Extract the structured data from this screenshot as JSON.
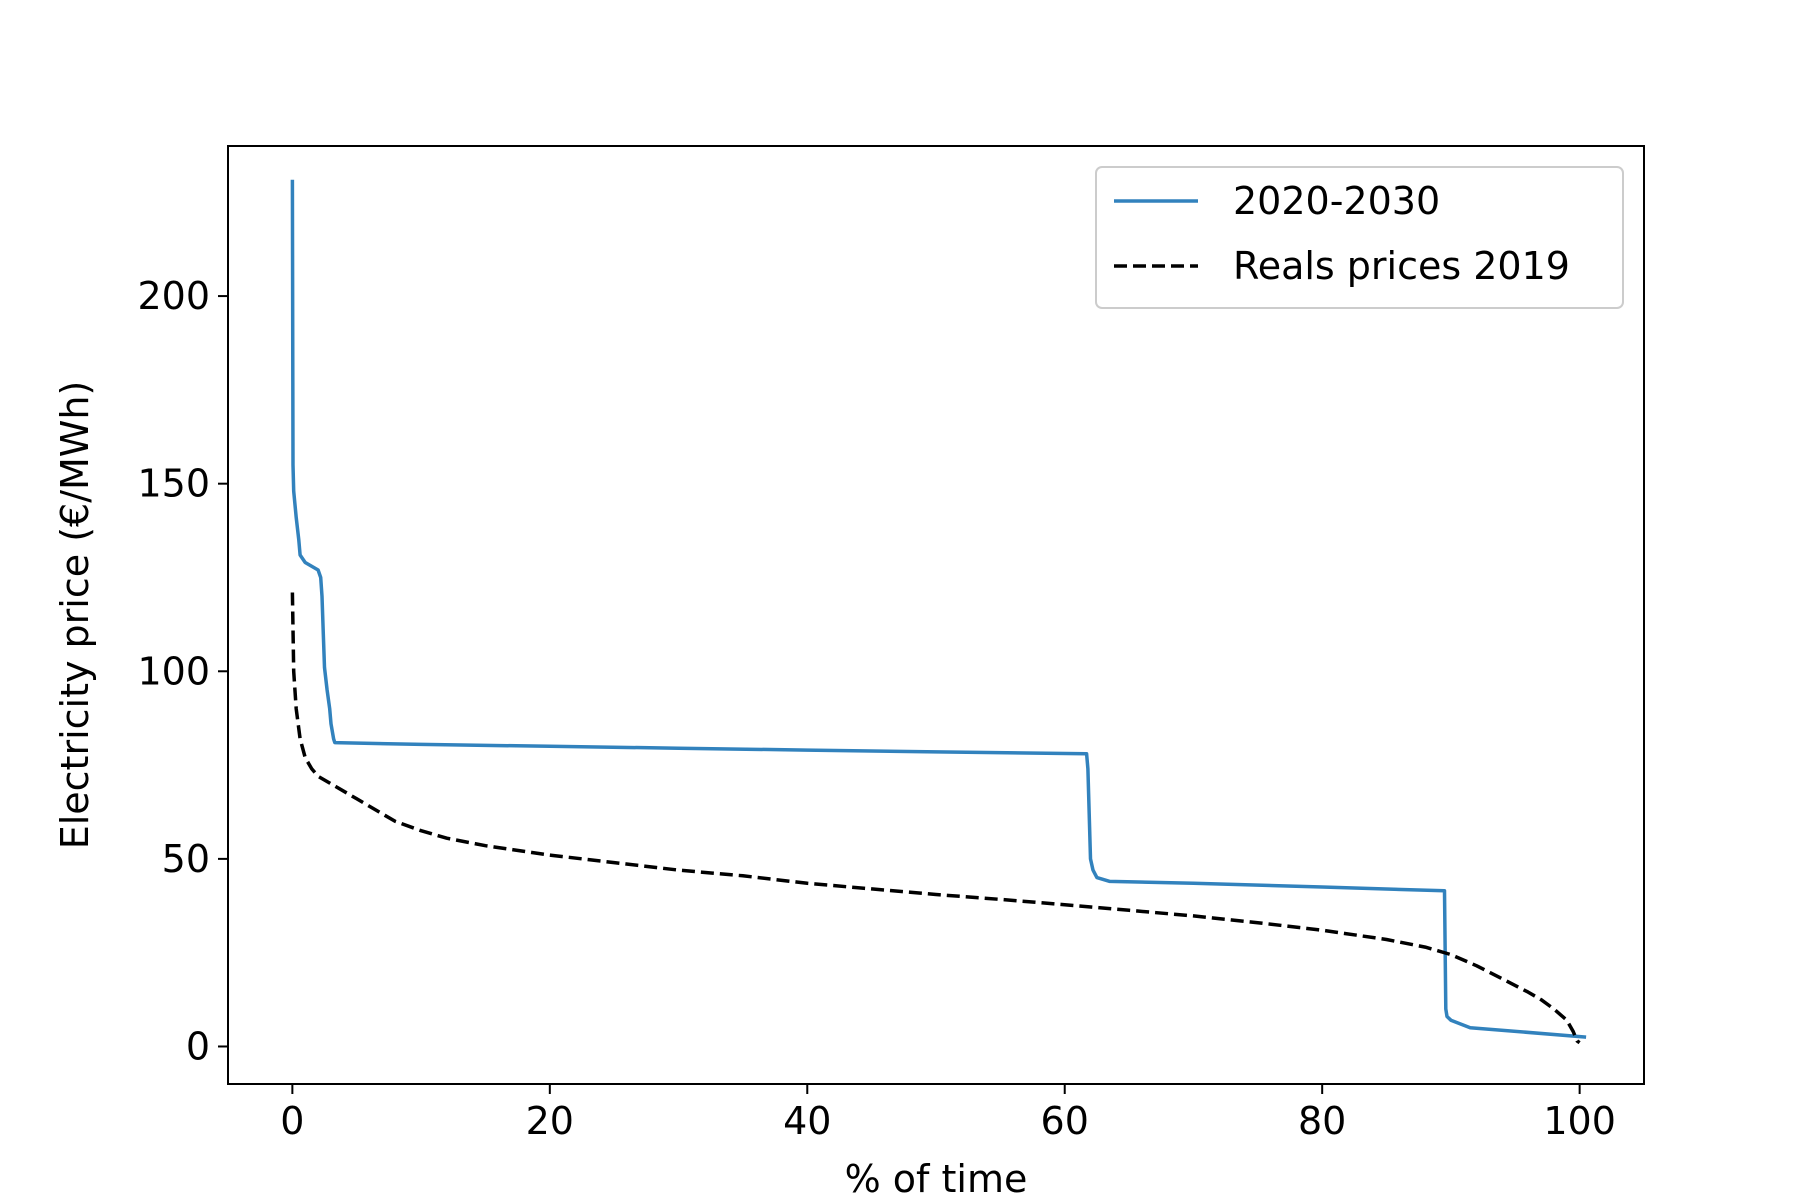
{
  "chart_data": {
    "type": "line",
    "title": "",
    "xlabel": "% of time",
    "ylabel": "Electricity price (€/MWh)",
    "xlim": [
      -5,
      105
    ],
    "ylim": [
      -10,
      240
    ],
    "xticks": [
      0,
      20,
      40,
      60,
      80,
      100
    ],
    "yticks": [
      0,
      50,
      100,
      150,
      200
    ],
    "xtick_labels": [
      "0",
      "20",
      "40",
      "60",
      "80",
      "100"
    ],
    "ytick_labels": [
      "0",
      "50",
      "100",
      "150",
      "200"
    ],
    "grid": false,
    "legend": {
      "placement": "upper right",
      "entries": [
        "2020-2030",
        "Reals prices 2019"
      ]
    },
    "series": [
      {
        "name": "2020-2030",
        "color": "#3282bd",
        "style": "solid",
        "x": [
          0.0,
          0.02,
          0.05,
          0.1,
          0.3,
          0.5,
          0.6,
          1.0,
          2.0,
          2.2,
          2.3,
          2.4,
          2.5,
          2.7,
          2.9,
          3.0,
          3.2,
          3.3,
          10,
          20,
          30,
          40,
          50,
          61.7,
          61.8,
          61.9,
          62.0,
          62.2,
          62.5,
          63.5,
          70,
          80,
          89.5,
          89.6,
          89.7,
          90.0,
          91.5,
          100.5
        ],
        "y": [
          231,
          205,
          155,
          148,
          141,
          135,
          131,
          129,
          127,
          125,
          120,
          110,
          101,
          95,
          90,
          86,
          82,
          81,
          80.5,
          80,
          79.5,
          79,
          78.5,
          78,
          74,
          62,
          50,
          47,
          45,
          44,
          43.5,
          42.5,
          41.5,
          10,
          8,
          7,
          5,
          2.5
        ]
      },
      {
        "name": "Reals prices 2019",
        "color": "#000000",
        "style": "dashed",
        "x": [
          0.0,
          0.1,
          0.3,
          0.6,
          1.0,
          1.5,
          2.0,
          3.0,
          4.0,
          5.0,
          6.0,
          8.0,
          10.0,
          12.0,
          15.0,
          20.0,
          25.0,
          30.0,
          35.0,
          40.0,
          45.0,
          50.0,
          55.0,
          60.0,
          65.0,
          70.0,
          75.0,
          80.0,
          85.0,
          88.0,
          90.0,
          92.0,
          94.0,
          96.0,
          97.0,
          98.0,
          99.0,
          99.5,
          99.8,
          100.0
        ],
        "y": [
          121,
          100,
          90,
          82,
          77,
          74,
          72,
          70,
          68,
          66,
          64,
          60,
          57.5,
          55.5,
          53.5,
          51,
          49,
          47,
          45.5,
          43.5,
          42,
          40.5,
          39.2,
          37.8,
          36.3,
          34.8,
          33,
          31,
          28.5,
          26.5,
          24.5,
          21.5,
          18,
          14.5,
          12.5,
          10,
          7,
          4,
          1.5,
          1
        ]
      }
    ]
  }
}
